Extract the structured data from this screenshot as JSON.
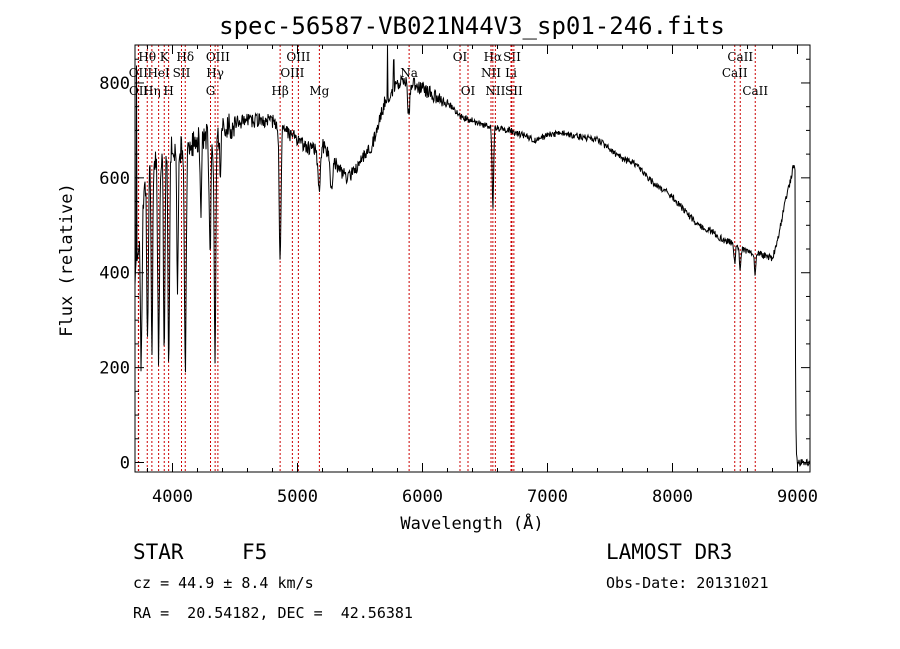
{
  "chart_data": {
    "type": "line",
    "title": "spec-56587-VB021N44V3_sp01-246.fits",
    "xlabel": "Wavelength (Å)",
    "ylabel": "Flux (relative)",
    "xlim": [
      3700,
      9100
    ],
    "ylim": [
      -20,
      880
    ],
    "xticks": [
      4000,
      5000,
      6000,
      7000,
      8000,
      9000
    ],
    "xtick_labels": [
      "4000",
      "5000",
      "6000",
      "7000",
      "8000",
      "9000"
    ],
    "yticks": [
      0,
      200,
      400,
      600,
      800
    ],
    "ytick_labels": [
      "0",
      "200",
      "400",
      "600",
      "800"
    ],
    "grid": false,
    "line_color": "#000000",
    "marker_color": "#cc0000",
    "continuum": [
      [
        3700,
        380
      ],
      [
        3800,
        620
      ],
      [
        3900,
        640
      ],
      [
        4000,
        660
      ],
      [
        4100,
        660
      ],
      [
        4200,
        680
      ],
      [
        4300,
        690
      ],
      [
        4400,
        700
      ],
      [
        4500,
        715
      ],
      [
        4600,
        720
      ],
      [
        4700,
        720
      ],
      [
        4800,
        720
      ],
      [
        4900,
        700
      ],
      [
        5000,
        680
      ],
      [
        5100,
        660
      ],
      [
        5200,
        670
      ],
      [
        5300,
        630
      ],
      [
        5400,
        600
      ],
      [
        5500,
        630
      ],
      [
        5600,
        670
      ],
      [
        5700,
        760
      ],
      [
        5800,
        800
      ],
      [
        5900,
        800
      ],
      [
        6000,
        790
      ],
      [
        6100,
        770
      ],
      [
        6200,
        760
      ],
      [
        6300,
        730
      ],
      [
        6400,
        720
      ],
      [
        6500,
        710
      ],
      [
        6600,
        705
      ],
      [
        6700,
        700
      ],
      [
        6800,
        690
      ],
      [
        6900,
        680
      ],
      [
        7000,
        690
      ],
      [
        7100,
        695
      ],
      [
        7200,
        690
      ],
      [
        7300,
        685
      ],
      [
        7400,
        680
      ],
      [
        7500,
        660
      ],
      [
        7600,
        640
      ],
      [
        7700,
        630
      ],
      [
        7800,
        600
      ],
      [
        7900,
        580
      ],
      [
        8000,
        560
      ],
      [
        8100,
        530
      ],
      [
        8200,
        500
      ],
      [
        8300,
        490
      ],
      [
        8400,
        470
      ],
      [
        8500,
        460
      ],
      [
        8600,
        445
      ],
      [
        8700,
        440
      ],
      [
        8800,
        430
      ],
      [
        8850,
        480
      ],
      [
        8900,
        550
      ],
      [
        8950,
        600
      ],
      [
        8960,
        620
      ],
      [
        8980,
        620
      ],
      [
        8985,
        120
      ],
      [
        8990,
        30
      ],
      [
        9000,
        0
      ]
    ],
    "absorption": [
      {
        "x": 3750,
        "depth": 300,
        "width": 6
      },
      {
        "x": 3800,
        "depth": 380,
        "width": 6
      },
      {
        "x": 3835,
        "depth": 400,
        "width": 6
      },
      {
        "x": 3889,
        "depth": 420,
        "width": 7
      },
      {
        "x": 3934,
        "depth": 430,
        "width": 6
      },
      {
        "x": 3970,
        "depth": 470,
        "width": 6
      },
      {
        "x": 4040,
        "depth": 300,
        "width": 6
      },
      {
        "x": 4102,
        "depth": 470,
        "width": 7
      },
      {
        "x": 4227,
        "depth": 150,
        "width": 6
      },
      {
        "x": 4300,
        "depth": 250,
        "width": 7
      },
      {
        "x": 4340,
        "depth": 460,
        "width": 7
      },
      {
        "x": 4383,
        "depth": 120,
        "width": 5
      },
      {
        "x": 4861,
        "depth": 290,
        "width": 7
      },
      {
        "x": 5172,
        "depth": 90,
        "width": 10
      },
      {
        "x": 5270,
        "depth": 70,
        "width": 10
      },
      {
        "x": 5890,
        "depth": 70,
        "width": 8
      },
      {
        "x": 6563,
        "depth": 170,
        "width": 6
      },
      {
        "x": 8498,
        "depth": 40,
        "width": 6
      },
      {
        "x": 8542,
        "depth": 50,
        "width": 6
      },
      {
        "x": 8662,
        "depth": 45,
        "width": 6
      }
    ],
    "spikes": [
      {
        "x": 3712,
        "value": 820
      },
      {
        "x": 5720,
        "value": 880
      },
      {
        "x": 5770,
        "value": 850
      }
    ],
    "line_markers": [
      {
        "label": "Hθ",
        "x": 3798,
        "row": 0
      },
      {
        "label": "OII",
        "x": 3727,
        "row": 1
      },
      {
        "label": "OII",
        "x": 3729,
        "row": 2
      },
      {
        "label": "Hη",
        "x": 3835,
        "row": 2
      },
      {
        "label": "HeI",
        "x": 3889,
        "row": 1
      },
      {
        "label": "K",
        "x": 3934,
        "row": 0
      },
      {
        "label": "H",
        "x": 3969,
        "row": 2
      },
      {
        "label": "SII",
        "x": 4072,
        "row": 1
      },
      {
        "label": "Hδ",
        "x": 4102,
        "row": 0
      },
      {
        "label": "OIII",
        "x": 4363,
        "row": 0
      },
      {
        "label": "Hγ",
        "x": 4341,
        "row": 1
      },
      {
        "label": "G",
        "x": 4304,
        "row": 2
      },
      {
        "label": "Hβ",
        "x": 4861,
        "row": 2
      },
      {
        "label": "OIII",
        "x": 5007,
        "row": 0
      },
      {
        "label": "OIII",
        "x": 4959,
        "row": 1
      },
      {
        "label": "Mg",
        "x": 5175,
        "row": 2
      },
      {
        "label": "Na",
        "x": 5893,
        "row": 1
      },
      {
        "label": "OI",
        "x": 6300,
        "row": 0
      },
      {
        "label": "OI",
        "x": 6364,
        "row": 2
      },
      {
        "label": "Hα",
        "x": 6563,
        "row": 0
      },
      {
        "label": "NII",
        "x": 6548,
        "row": 1
      },
      {
        "label": "NII",
        "x": 6583,
        "row": 2
      },
      {
        "label": "SII",
        "x": 6716,
        "row": 0
      },
      {
        "label": "Li",
        "x": 6708,
        "row": 1
      },
      {
        "label": "SII",
        "x": 6731,
        "row": 2
      },
      {
        "label": "CaII",
        "x": 8542,
        "row": 0
      },
      {
        "label": "CaII",
        "x": 8498,
        "row": 1
      },
      {
        "label": "CaII",
        "x": 8662,
        "row": 2
      }
    ]
  },
  "info": {
    "object_class": "STAR",
    "subclass": "F5",
    "redshift_line": "cz = 44.9 ± 8.4 km/s",
    "coords_line": "RA =  20.54182, DEC =  42.56381",
    "survey": "LAMOST DR3",
    "obs_date_line": "Obs-Date: 20131021"
  }
}
